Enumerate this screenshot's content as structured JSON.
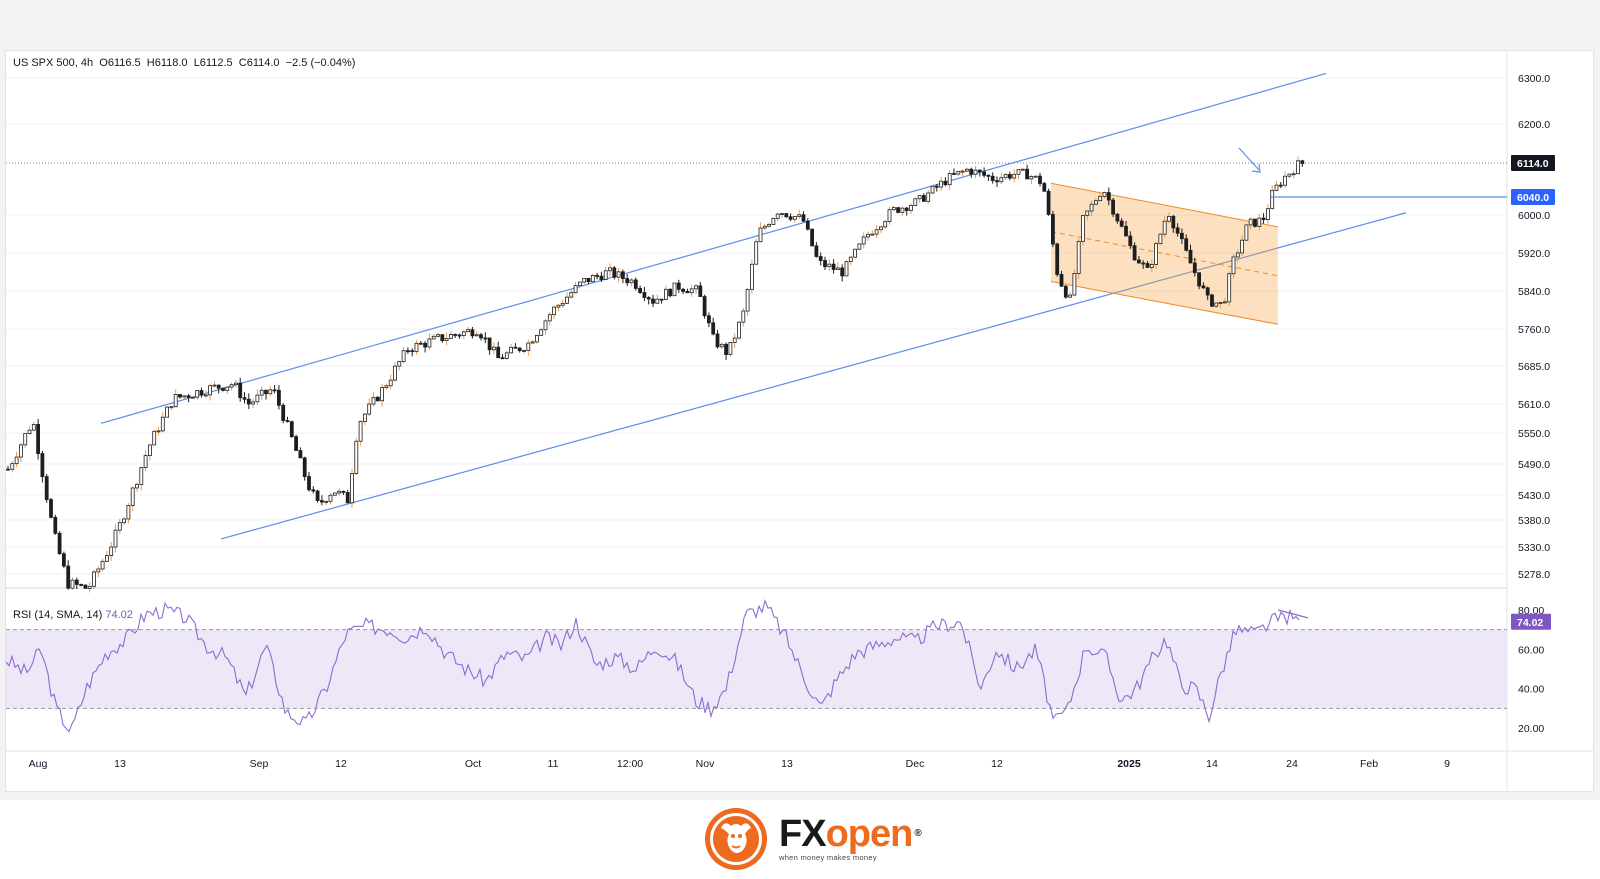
{
  "header": {
    "symbol": "US SPX 500",
    "timeframe": "4h",
    "open": "O6116.5",
    "high": "H6118.0",
    "low": "L6112.5",
    "close": "C6114.0",
    "change": "−2.5 (−0.04%)"
  },
  "rsi_header": {
    "label": "RSI (14, SMA, 14)",
    "value": "74.02"
  },
  "brand": {
    "name_fx": "FX",
    "name_open": "open",
    "registered": "®",
    "tagline": "when money makes money"
  },
  "colors": {
    "candle": "#1e1e1e",
    "candle_wick_up": "#f19a4b",
    "channel_line": "#5b8ee8",
    "flag_fill": "#f7a64a",
    "rsi_line": "#8b6ccf",
    "rsi_band": "#ede7f8",
    "badge_last": "#131722",
    "badge_level": "#2962ff",
    "badge_rsi": "#7e57c2"
  },
  "chart_data": {
    "type": "candlestick",
    "timeframe": "4h",
    "y_ticks": [
      6300,
      6200,
      6114,
      6040,
      6000,
      5920,
      5840,
      5760,
      5685,
      5610,
      5550,
      5490,
      5430,
      5380,
      5330,
      5278
    ],
    "y_tick_labels": [
      "6300.0",
      "6200.0",
      "6000.0",
      "5920.0",
      "5840.0",
      "5760.0",
      "5685.0",
      "5610.0",
      "5550.0",
      "5490.0",
      "5430.0",
      "5380.0",
      "5330.0",
      "5278.0"
    ],
    "x_tick_labels": [
      "Aug",
      "13",
      "Sep",
      "12",
      "Oct",
      "11",
      "12:00",
      "Nov",
      "13",
      "Dec",
      "12",
      "2025",
      "14",
      "24",
      "Feb",
      "9"
    ],
    "last_price": {
      "value": 6114.0,
      "label": "6114.0"
    },
    "marked_level": {
      "value": 6040.0,
      "label": "6040.0"
    },
    "price_path": [
      [
        0,
        5480
      ],
      [
        25,
        5575
      ],
      [
        45,
        5360
      ],
      [
        60,
        5260
      ],
      [
        80,
        5250
      ],
      [
        110,
        5360
      ],
      [
        140,
        5520
      ],
      [
        165,
        5620
      ],
      [
        200,
        5640
      ],
      [
        225,
        5650
      ],
      [
        240,
        5610
      ],
      [
        265,
        5640
      ],
      [
        280,
        5560
      ],
      [
        300,
        5450
      ],
      [
        310,
        5410
      ],
      [
        325,
        5440
      ],
      [
        340,
        5420
      ],
      [
        350,
        5570
      ],
      [
        375,
        5640
      ],
      [
        400,
        5720
      ],
      [
        430,
        5740
      ],
      [
        470,
        5760
      ],
      [
        490,
        5700
      ],
      [
        520,
        5730
      ],
      [
        545,
        5800
      ],
      [
        575,
        5860
      ],
      [
        600,
        5880
      ],
      [
        625,
        5860
      ],
      [
        645,
        5820
      ],
      [
        670,
        5850
      ],
      [
        690,
        5840
      ],
      [
        705,
        5740
      ],
      [
        720,
        5710
      ],
      [
        735,
        5790
      ],
      [
        750,
        5960
      ],
      [
        770,
        6010
      ],
      [
        795,
        5990
      ],
      [
        810,
        5900
      ],
      [
        835,
        5880
      ],
      [
        860,
        5960
      ],
      [
        885,
        6010
      ],
      [
        910,
        6030
      ],
      [
        940,
        6080
      ],
      [
        960,
        6100
      ],
      [
        985,
        6080
      ],
      [
        1005,
        6090
      ],
      [
        1020,
        6090
      ],
      [
        1035,
        6070
      ],
      [
        1050,
        5870
      ],
      [
        1062,
        5820
      ],
      [
        1075,
        5990
      ],
      [
        1095,
        6060
      ],
      [
        1110,
        5990
      ],
      [
        1125,
        5920
      ],
      [
        1140,
        5880
      ],
      [
        1160,
        6010
      ],
      [
        1180,
        5910
      ],
      [
        1200,
        5820
      ],
      [
        1215,
        5810
      ],
      [
        1225,
        5900
      ],
      [
        1240,
        5980
      ],
      [
        1255,
        5990
      ],
      [
        1265,
        6050
      ],
      [
        1275,
        6080
      ],
      [
        1290,
        6110
      ],
      [
        1295,
        6114
      ]
    ],
    "rising_channel": {
      "upper": {
        "from": [
          95,
          5570
        ],
        "to": [
          1320,
          6310
        ]
      },
      "lower": {
        "from": [
          215,
          5345
        ],
        "to": [
          1400,
          6005
        ]
      }
    },
    "falling_flag": {
      "upper": {
        "from": [
          1045,
          6070
        ],
        "to": [
          1272,
          5975
        ]
      },
      "lower": {
        "from": [
          1045,
          5860
        ],
        "to": [
          1272,
          5770
        ]
      },
      "mid": {
        "from": [
          1045,
          5965
        ],
        "to": [
          1272,
          5872
        ]
      }
    },
    "rsi": {
      "period": 14,
      "value": 74.02,
      "y_ticks": [
        80,
        60,
        40,
        20
      ],
      "y_tick_labels": [
        "80.00",
        "60.00",
        "40.00",
        "20.00"
      ],
      "band": [
        30,
        70
      ],
      "path": [
        [
          0,
          55
        ],
        [
          20,
          48
        ],
        [
          35,
          60
        ],
        [
          50,
          30
        ],
        [
          65,
          18
        ],
        [
          80,
          40
        ],
        [
          100,
          58
        ],
        [
          120,
          65
        ],
        [
          140,
          78
        ],
        [
          160,
          80
        ],
        [
          180,
          76
        ],
        [
          200,
          62
        ],
        [
          220,
          56
        ],
        [
          240,
          36
        ],
        [
          260,
          62
        ],
        [
          280,
          28
        ],
        [
          300,
          22
        ],
        [
          320,
          40
        ],
        [
          340,
          68
        ],
        [
          360,
          72
        ],
        [
          385,
          70
        ],
        [
          400,
          66
        ],
        [
          420,
          72
        ],
        [
          440,
          58
        ],
        [
          460,
          50
        ],
        [
          480,
          44
        ],
        [
          500,
          58
        ],
        [
          520,
          55
        ],
        [
          540,
          66
        ],
        [
          555,
          62
        ],
        [
          570,
          74
        ],
        [
          590,
          52
        ],
        [
          610,
          56
        ],
        [
          630,
          50
        ],
        [
          650,
          62
        ],
        [
          670,
          54
        ],
        [
          690,
          34
        ],
        [
          705,
          30
        ],
        [
          720,
          40
        ],
        [
          740,
          78
        ],
        [
          760,
          82
        ],
        [
          780,
          66
        ],
        [
          800,
          44
        ],
        [
          815,
          30
        ],
        [
          830,
          44
        ],
        [
          850,
          58
        ],
        [
          870,
          62
        ],
        [
          890,
          66
        ],
        [
          910,
          64
        ],
        [
          930,
          72
        ],
        [
          955,
          74
        ],
        [
          975,
          40
        ],
        [
          990,
          60
        ],
        [
          1010,
          50
        ],
        [
          1030,
          60
        ],
        [
          1048,
          22
        ],
        [
          1062,
          30
        ],
        [
          1080,
          62
        ],
        [
          1100,
          56
        ],
        [
          1115,
          34
        ],
        [
          1130,
          40
        ],
        [
          1145,
          54
        ],
        [
          1160,
          66
        ],
        [
          1175,
          42
        ],
        [
          1190,
          40
        ],
        [
          1203,
          26
        ],
        [
          1215,
          48
        ],
        [
          1230,
          70
        ],
        [
          1250,
          68
        ],
        [
          1265,
          74
        ],
        [
          1280,
          77
        ],
        [
          1295,
          74
        ]
      ],
      "divergence_line": {
        "from": [
          1272,
          80
        ],
        "to": [
          1302,
          76
        ]
      }
    },
    "annotations": [
      {
        "type": "arrow",
        "at": [
          1255,
          6090
        ]
      }
    ]
  }
}
